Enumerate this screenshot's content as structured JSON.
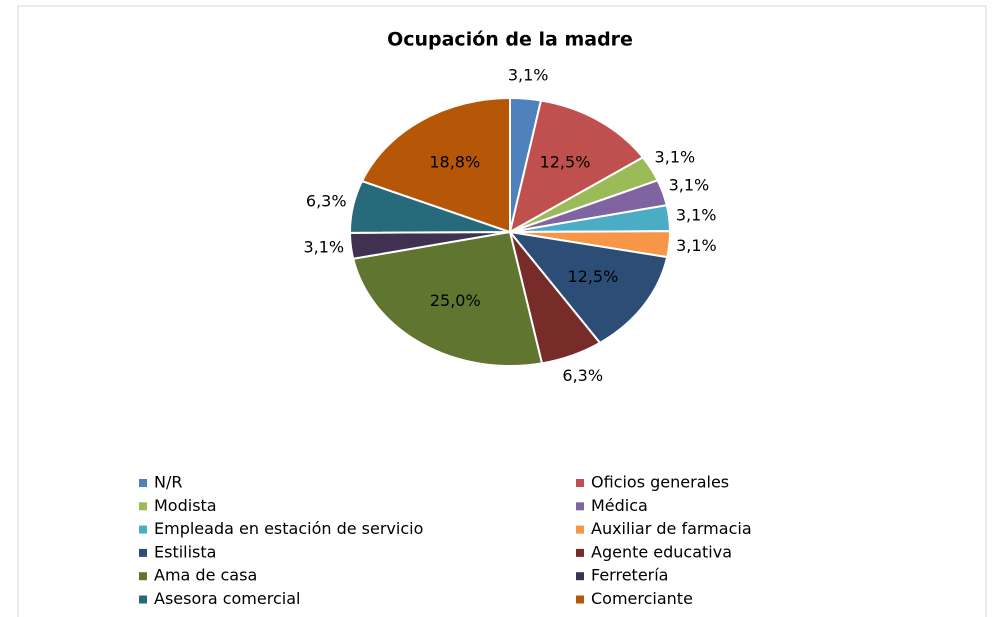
{
  "chart_data": {
    "type": "pie",
    "title": "Ocupación  de la madre",
    "categories": [
      "N/R",
      "Oficios generales",
      "Modista",
      "Médica",
      "Empleada en estación de servicio",
      "Auxiliar de farmacia",
      "Estilista",
      "Agente educativa",
      "Ama de casa",
      "Ferretería",
      "Asesora comercial",
      "Comerciante"
    ],
    "values": [
      3.1,
      12.5,
      3.1,
      3.1,
      3.1,
      3.1,
      12.5,
      6.3,
      25.0,
      3.1,
      6.3,
      18.8
    ],
    "value_labels": [
      "3,1%",
      "12,5%",
      "3,1%",
      "3,1%",
      "3,1%",
      "3,1%",
      "12,5%",
      "6,3%",
      "25,0%",
      "3,1%",
      "6,3%",
      "18,8%"
    ],
    "colors": [
      "#4F81BD",
      "#C0504D",
      "#9BBB59",
      "#8064A2",
      "#4BACC6",
      "#F79646",
      "#2C4D75",
      "#772C2A",
      "#5F7530",
      "#403152",
      "#276A7C",
      "#B65708"
    ],
    "legend": "bottom"
  }
}
